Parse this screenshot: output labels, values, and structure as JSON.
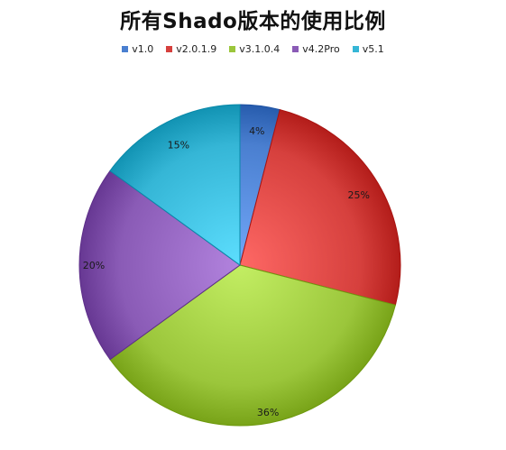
{
  "chart_data": {
    "type": "pie",
    "title": "所有Shado版本的使用比例",
    "legend_position": "top",
    "categories": [
      "v1.0",
      "v2.0.1.9",
      "v3.1.0.4",
      "v4.2Pro",
      "v5.1"
    ],
    "values": [
      4,
      25,
      36,
      20,
      15
    ],
    "value_labels": [
      "4%",
      "25%",
      "36%",
      "20%",
      "15%"
    ],
    "colors": [
      "#4a7fd0",
      "#d6403d",
      "#9bc63b",
      "#8a5bb6",
      "#35b6d6"
    ],
    "start_angle": "12 o'clock",
    "direction": "clockwise"
  }
}
